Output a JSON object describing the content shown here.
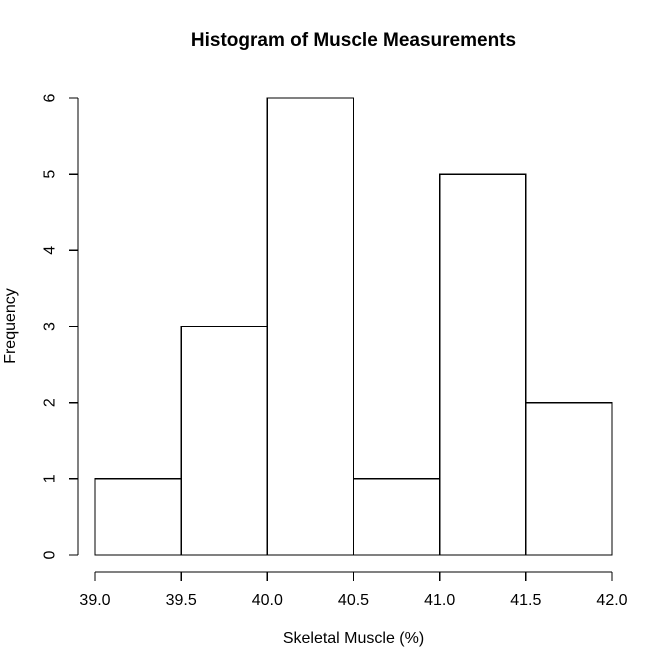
{
  "chart_data": {
    "type": "bar",
    "subtype": "histogram",
    "title": "Histogram of Muscle Measurements",
    "xlabel": "Skeletal Muscle (%)",
    "ylabel": "Frequency",
    "bin_edges": [
      39.0,
      39.5,
      40.0,
      40.5,
      41.0,
      41.5,
      42.0
    ],
    "values": [
      1,
      3,
      6,
      1,
      5,
      2
    ],
    "x_tick_labels": [
      "39.0",
      "39.5",
      "40.0",
      "40.5",
      "41.0",
      "41.5",
      "42.0"
    ],
    "y_tick_labels": [
      "0",
      "1",
      "2",
      "3",
      "4",
      "5",
      "6"
    ],
    "xlim": [
      39.0,
      42.0
    ],
    "ylim": [
      0,
      6
    ],
    "grid": "off",
    "legend": "none",
    "bar_fill": "#ffffff",
    "bar_stroke": "#000000",
    "axis_color": "#000000",
    "background": "#ffffff",
    "text_color": "#000000"
  }
}
